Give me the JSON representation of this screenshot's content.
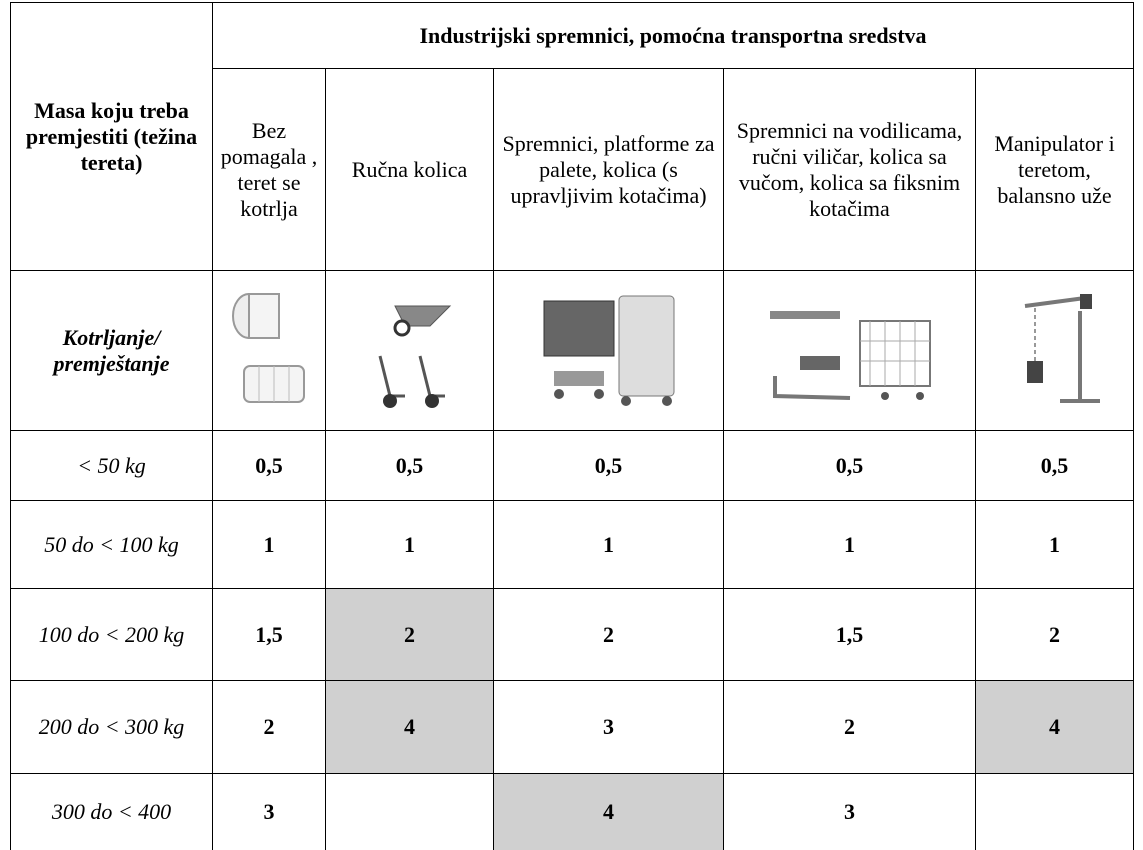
{
  "table": {
    "header": {
      "mass_label": "Masa koju treba premjestiti (težina tereta)",
      "group_title": "Industrijski spremnici, pomoćna transportna sredstva",
      "columns": [
        "Bez pomagala , teret se kotrlja",
        "Ručna kolica",
        "Spremnici, platforme za palete, kolica (s upravljivim kotačima)",
        "Spremnici na vodilicama, ručni viličar, kolica sa vučom, kolica sa fiksnim kotačima",
        "Manipulator i teretom, balansno uže"
      ]
    },
    "image_row_label": "Kotrljanje/ premještanje",
    "rows": [
      {
        "label": "< 50 kg",
        "values": [
          "0,5",
          "0,5",
          "0,5",
          "0,5",
          "0,5"
        ],
        "shaded": [
          false,
          false,
          false,
          false,
          false
        ]
      },
      {
        "label": "50 do < 100 kg",
        "values": [
          "1",
          "1",
          "1",
          "1",
          "1"
        ],
        "shaded": [
          false,
          false,
          false,
          false,
          false
        ]
      },
      {
        "label": "100 do < 200 kg",
        "values": [
          "1,5",
          "2",
          "2",
          "1,5",
          "2"
        ],
        "shaded": [
          false,
          true,
          false,
          false,
          false
        ]
      },
      {
        "label": "200 do < 300 kg",
        "values": [
          "2",
          "4",
          "3",
          "2",
          "4"
        ],
        "shaded": [
          false,
          true,
          false,
          false,
          true
        ]
      },
      {
        "label": "300 do < 400",
        "values": [
          "3",
          null,
          "4",
          "3",
          null
        ],
        "shaded": [
          false,
          false,
          true,
          false,
          false
        ]
      }
    ]
  }
}
